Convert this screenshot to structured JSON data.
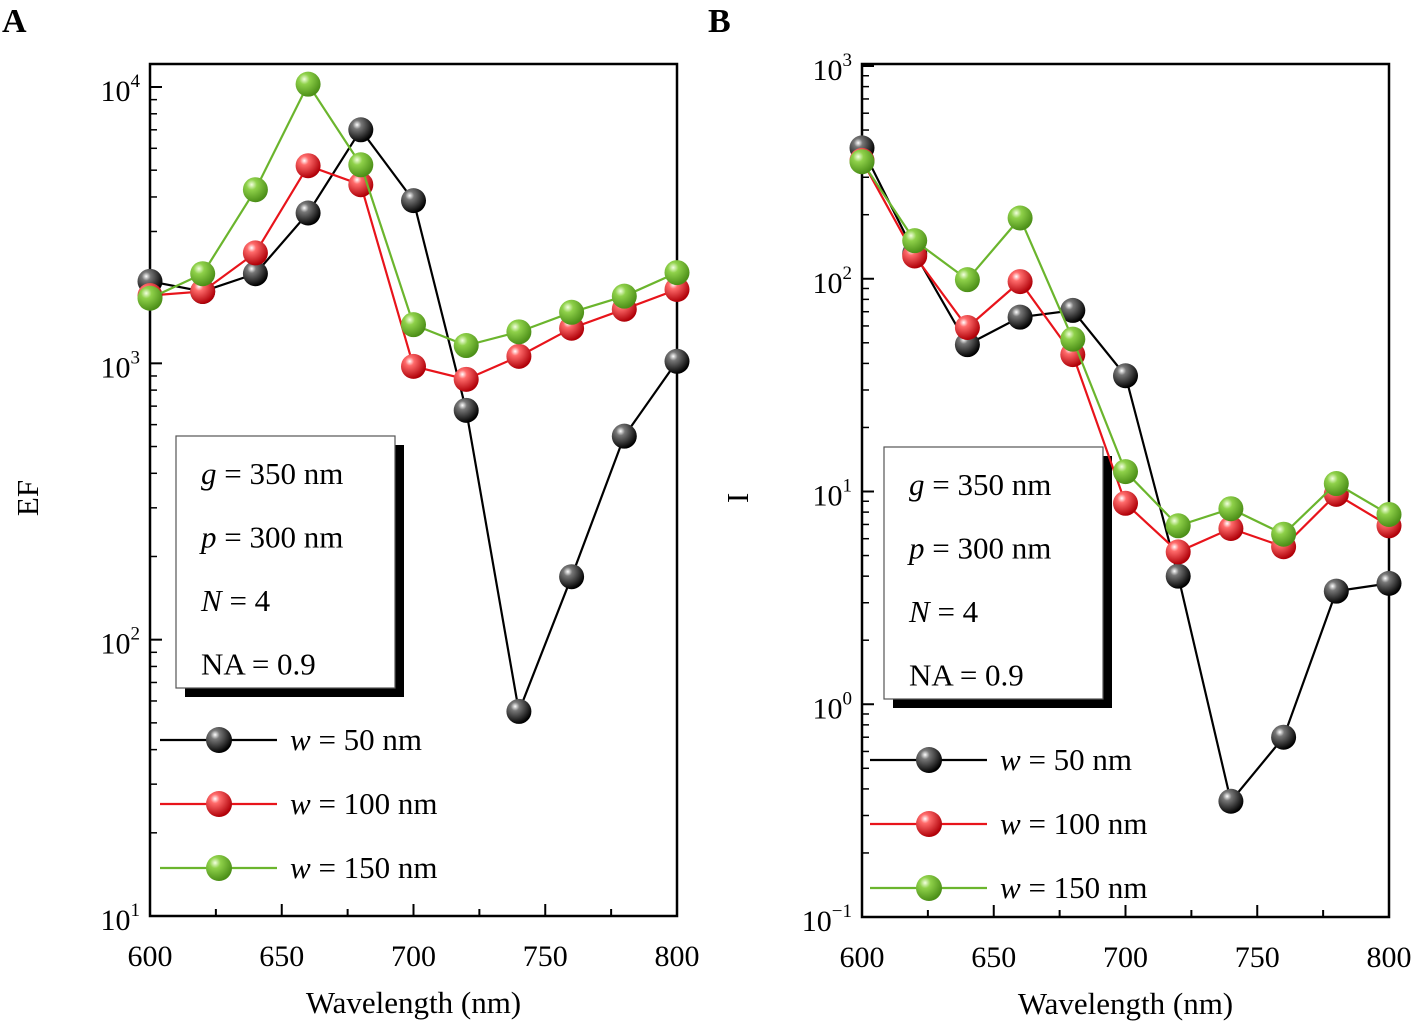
{
  "chart_data": [
    {
      "type": "line",
      "panel_label": "A",
      "xlabel": "Wavelength (nm)",
      "ylabel": "EF",
      "xlim": [
        600,
        800
      ],
      "ylim": [
        10,
        10000
      ],
      "yscale": "log",
      "x_ticks": [
        "600",
        "650",
        "700",
        "750",
        "800"
      ],
      "y_ticks": [
        {
          "base": "10",
          "exp": "1"
        },
        {
          "base": "10",
          "exp": "2"
        },
        {
          "base": "10",
          "exp": "3"
        },
        {
          "base": "10",
          "exp": "4"
        }
      ],
      "x": [
        600,
        620,
        640,
        660,
        680,
        700,
        720,
        740,
        760,
        780,
        800
      ],
      "series": [
        {
          "name": "w = 50 nm",
          "var": "w",
          "rest": " = 50 nm",
          "color": "#000000",
          "values": [
            1980,
            1820,
            2110,
            3500,
            7000,
            3880,
            676,
            55,
            169,
            545,
            1017
          ]
        },
        {
          "name": "w = 100 nm",
          "var": "w",
          "rest": " = 100 nm",
          "color": "#e8141b",
          "values": [
            1760,
            1820,
            2510,
            5190,
            4430,
            975,
            875,
            1060,
            1340,
            1570,
            1850
          ]
        },
        {
          "name": "w = 150 nm",
          "var": "w",
          "rest": " = 150 nm",
          "color": "#6bb52d",
          "values": [
            1720,
            2110,
            4250,
            10240,
            5230,
            1380,
            1160,
            1300,
            1530,
            1750,
            2130
          ]
        }
      ],
      "annotation": [
        {
          "var": "g",
          "rest": " = 350 nm"
        },
        {
          "var": "p",
          "rest": " = 300 nm"
        },
        {
          "var": "N",
          "rest": " = 4"
        },
        {
          "var": "",
          "rest": "NA = 0.9"
        }
      ],
      "legend_placement": "bottom-left",
      "grid": false
    },
    {
      "type": "line",
      "panel_label": "B",
      "xlabel": "Wavelength (nm)",
      "ylabel": "I",
      "xlim": [
        600,
        800
      ],
      "ylim": [
        0.1,
        1000
      ],
      "yscale": "log",
      "x_ticks": [
        "600",
        "650",
        "700",
        "750",
        "800"
      ],
      "y_ticks": [
        {
          "base": "10",
          "exp": "−1"
        },
        {
          "base": "10",
          "exp": "0"
        },
        {
          "base": "10",
          "exp": "1"
        },
        {
          "base": "10",
          "exp": "2"
        },
        {
          "base": "10",
          "exp": "3"
        }
      ],
      "x": [
        600,
        620,
        640,
        660,
        680,
        700,
        720,
        740,
        760,
        780,
        800
      ],
      "series": [
        {
          "name": "w = 50 nm",
          "var": "w",
          "rest": " = 50 nm",
          "color": "#000000",
          "values": [
            412,
            132,
            49,
            66,
            71,
            35,
            4.0,
            0.35,
            0.7,
            3.4,
            3.7
          ]
        },
        {
          "name": "w = 100 nm",
          "var": "w",
          "rest": " = 100 nm",
          "color": "#e8141b",
          "values": [
            360,
            128,
            59,
            97,
            44,
            8.8,
            5.2,
            6.7,
            5.5,
            9.7,
            6.9
          ]
        },
        {
          "name": "w = 150 nm",
          "var": "w",
          "rest": " = 150 nm",
          "color": "#6bb52d",
          "values": [
            355,
            151,
            99,
            193,
            52,
            12.4,
            6.9,
            8.3,
            6.3,
            10.9,
            7.8
          ]
        }
      ],
      "annotation": [
        {
          "var": "g",
          "rest": " = 350 nm"
        },
        {
          "var": "p",
          "rest": " = 300 nm"
        },
        {
          "var": "N",
          "rest": " = 4"
        },
        {
          "var": "",
          "rest": "NA = 0.9"
        }
      ],
      "legend_placement": "bottom-left",
      "grid": false
    }
  ]
}
